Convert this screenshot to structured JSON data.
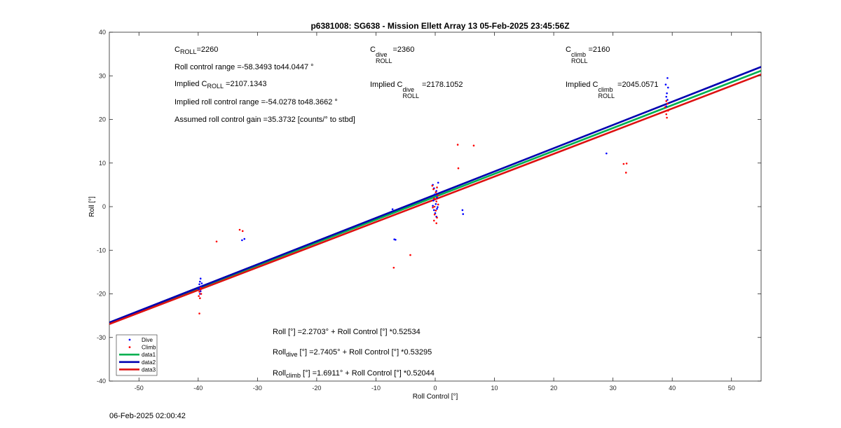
{
  "footer_timestamp": "06-Feb-2025 02:00:42",
  "annotations": {
    "c_roll": {
      "c": "C",
      "sub": "ROLL",
      "value": "=2260"
    },
    "c_roll_dive": {
      "c": "C",
      "sup": "dive",
      "sub": "ROLL",
      "value": "=2360"
    },
    "c_roll_climb": {
      "c": "C",
      "sup": "climb",
      "sub": "ROLL",
      "value": "=2160"
    },
    "roll_range": "Roll control range =-58.3493 to44.0447 °",
    "implied_c_roll": {
      "prefix": "Implied C",
      "sub": "ROLL",
      "value": " =2107.1343"
    },
    "implied_c_roll_dive": {
      "prefix": "Implied C",
      "sup": "dive",
      "sub": "ROLL",
      "value": " =2178.1052"
    },
    "implied_c_roll_climb": {
      "prefix": "Implied C",
      "sup": "climb",
      "sub": "ROLL",
      "value": " =2045.0571"
    },
    "implied_range": "Implied roll control range =-54.0278 to48.3662 °",
    "gain": "Assumed roll control gain =35.3732 [counts/° to stbd]",
    "eq_all": "Roll [°] =2.2703° + Roll Control [°] *0.52534",
    "eq_dive": {
      "prefix": "Roll",
      "sub": "dive",
      "rest": " [°] =2.7405° + Roll Control [°] *0.53295"
    },
    "eq_climb": {
      "prefix": "Roll",
      "sub": "climb",
      "rest": " [°] =1.6911° + Roll Control [°] *0.52044"
    }
  },
  "chart_data": {
    "type": "scatter",
    "title": "p6381008: SG638 - Mission Ellett Array 13 05-Feb-2025 23:45:56Z",
    "xlabel": "Roll Control [°]",
    "ylabel": "Roll [°]",
    "xlim": [
      -55,
      55
    ],
    "ylim": [
      -40,
      40
    ],
    "xticks": [
      -50,
      -40,
      -30,
      -20,
      -10,
      0,
      10,
      20,
      30,
      40,
      50
    ],
    "yticks": [
      -40,
      -30,
      -20,
      -10,
      0,
      10,
      20,
      30,
      40
    ],
    "grid": false,
    "legend_location": "bottom-left",
    "series": [
      {
        "name": "Dive",
        "kind": "points",
        "color": "#0000ff",
        "points": [
          [
            -39.6,
            -16.5
          ],
          [
            -39.7,
            -17.2
          ],
          [
            -39.8,
            -17.8
          ],
          [
            -39.5,
            -18.3
          ],
          [
            -39.9,
            -18.9
          ],
          [
            -39.6,
            -19.4
          ],
          [
            -39.4,
            -17.6
          ],
          [
            -39.7,
            -20.0
          ],
          [
            -32.6,
            -7.7
          ],
          [
            -32.2,
            -7.4
          ],
          [
            -7.2,
            -0.6
          ],
          [
            -6.7,
            -7.6
          ],
          [
            -6.9,
            -7.5
          ],
          [
            -0.4,
            5.0
          ],
          [
            -0.2,
            4.2
          ],
          [
            0.2,
            3.6
          ],
          [
            -0.1,
            2.8
          ],
          [
            0.3,
            2.1
          ],
          [
            -0.3,
            1.4
          ],
          [
            0.1,
            0.6
          ],
          [
            0.4,
            -0.1
          ],
          [
            -0.2,
            -0.8
          ],
          [
            0.0,
            -1.5
          ],
          [
            0.2,
            -2.3
          ],
          [
            0.5,
            5.5
          ],
          [
            0.3,
            -0.5
          ],
          [
            -0.4,
            0.2
          ],
          [
            4.6,
            -0.8
          ],
          [
            4.7,
            -1.7
          ],
          [
            28.9,
            12.2
          ],
          [
            39.0,
            23.0
          ],
          [
            39.2,
            24.5
          ],
          [
            39.1,
            26.0
          ],
          [
            39.3,
            27.3
          ],
          [
            38.9,
            28.0
          ],
          [
            39.2,
            29.5
          ],
          [
            39.0,
            25.2
          ]
        ]
      },
      {
        "name": "Climb",
        "kind": "points",
        "color": "#ff0000",
        "points": [
          [
            -39.6,
            -19.0
          ],
          [
            -39.8,
            -19.5
          ],
          [
            -39.5,
            -20.0
          ],
          [
            -39.9,
            -20.5
          ],
          [
            -39.7,
            -21.0
          ],
          [
            -39.6,
            -18.6
          ],
          [
            -39.8,
            -24.5
          ],
          [
            -36.9,
            -8.0
          ],
          [
            -33.0,
            -5.3
          ],
          [
            -32.5,
            -5.6
          ],
          [
            -7.0,
            -14.0
          ],
          [
            -4.2,
            -11.1
          ],
          [
            -0.5,
            4.8
          ],
          [
            -0.3,
            4.0
          ],
          [
            0.1,
            3.3
          ],
          [
            0.4,
            2.6
          ],
          [
            -0.2,
            1.9
          ],
          [
            0.2,
            1.2
          ],
          [
            0.5,
            0.5
          ],
          [
            -0.4,
            -0.2
          ],
          [
            0.1,
            -0.9
          ],
          [
            -0.1,
            -1.8
          ],
          [
            0.3,
            -2.5
          ],
          [
            -0.2,
            -3.2
          ],
          [
            0.2,
            -3.8
          ],
          [
            0.3,
            4.4
          ],
          [
            -0.1,
            0.0
          ],
          [
            3.8,
            14.2
          ],
          [
            3.9,
            8.8
          ],
          [
            6.5,
            14.0
          ],
          [
            31.8,
            9.8
          ],
          [
            32.3,
            9.9
          ],
          [
            32.2,
            7.8
          ],
          [
            39.1,
            20.4
          ],
          [
            39.0,
            21.2
          ],
          [
            39.3,
            22.0
          ],
          [
            38.8,
            22.8
          ],
          [
            39.2,
            23.6
          ],
          [
            39.0,
            24.2
          ]
        ]
      },
      {
        "name": "data1",
        "kind": "line",
        "color": "#00b050",
        "intercept": 2.2703,
        "slope": 0.52534
      },
      {
        "name": "data2",
        "kind": "line",
        "color": "#0000b0",
        "intercept": 2.7405,
        "slope": 0.53295
      },
      {
        "name": "data3",
        "kind": "line",
        "color": "#dd1111",
        "intercept": 1.6911,
        "slope": 0.52044
      }
    ]
  }
}
